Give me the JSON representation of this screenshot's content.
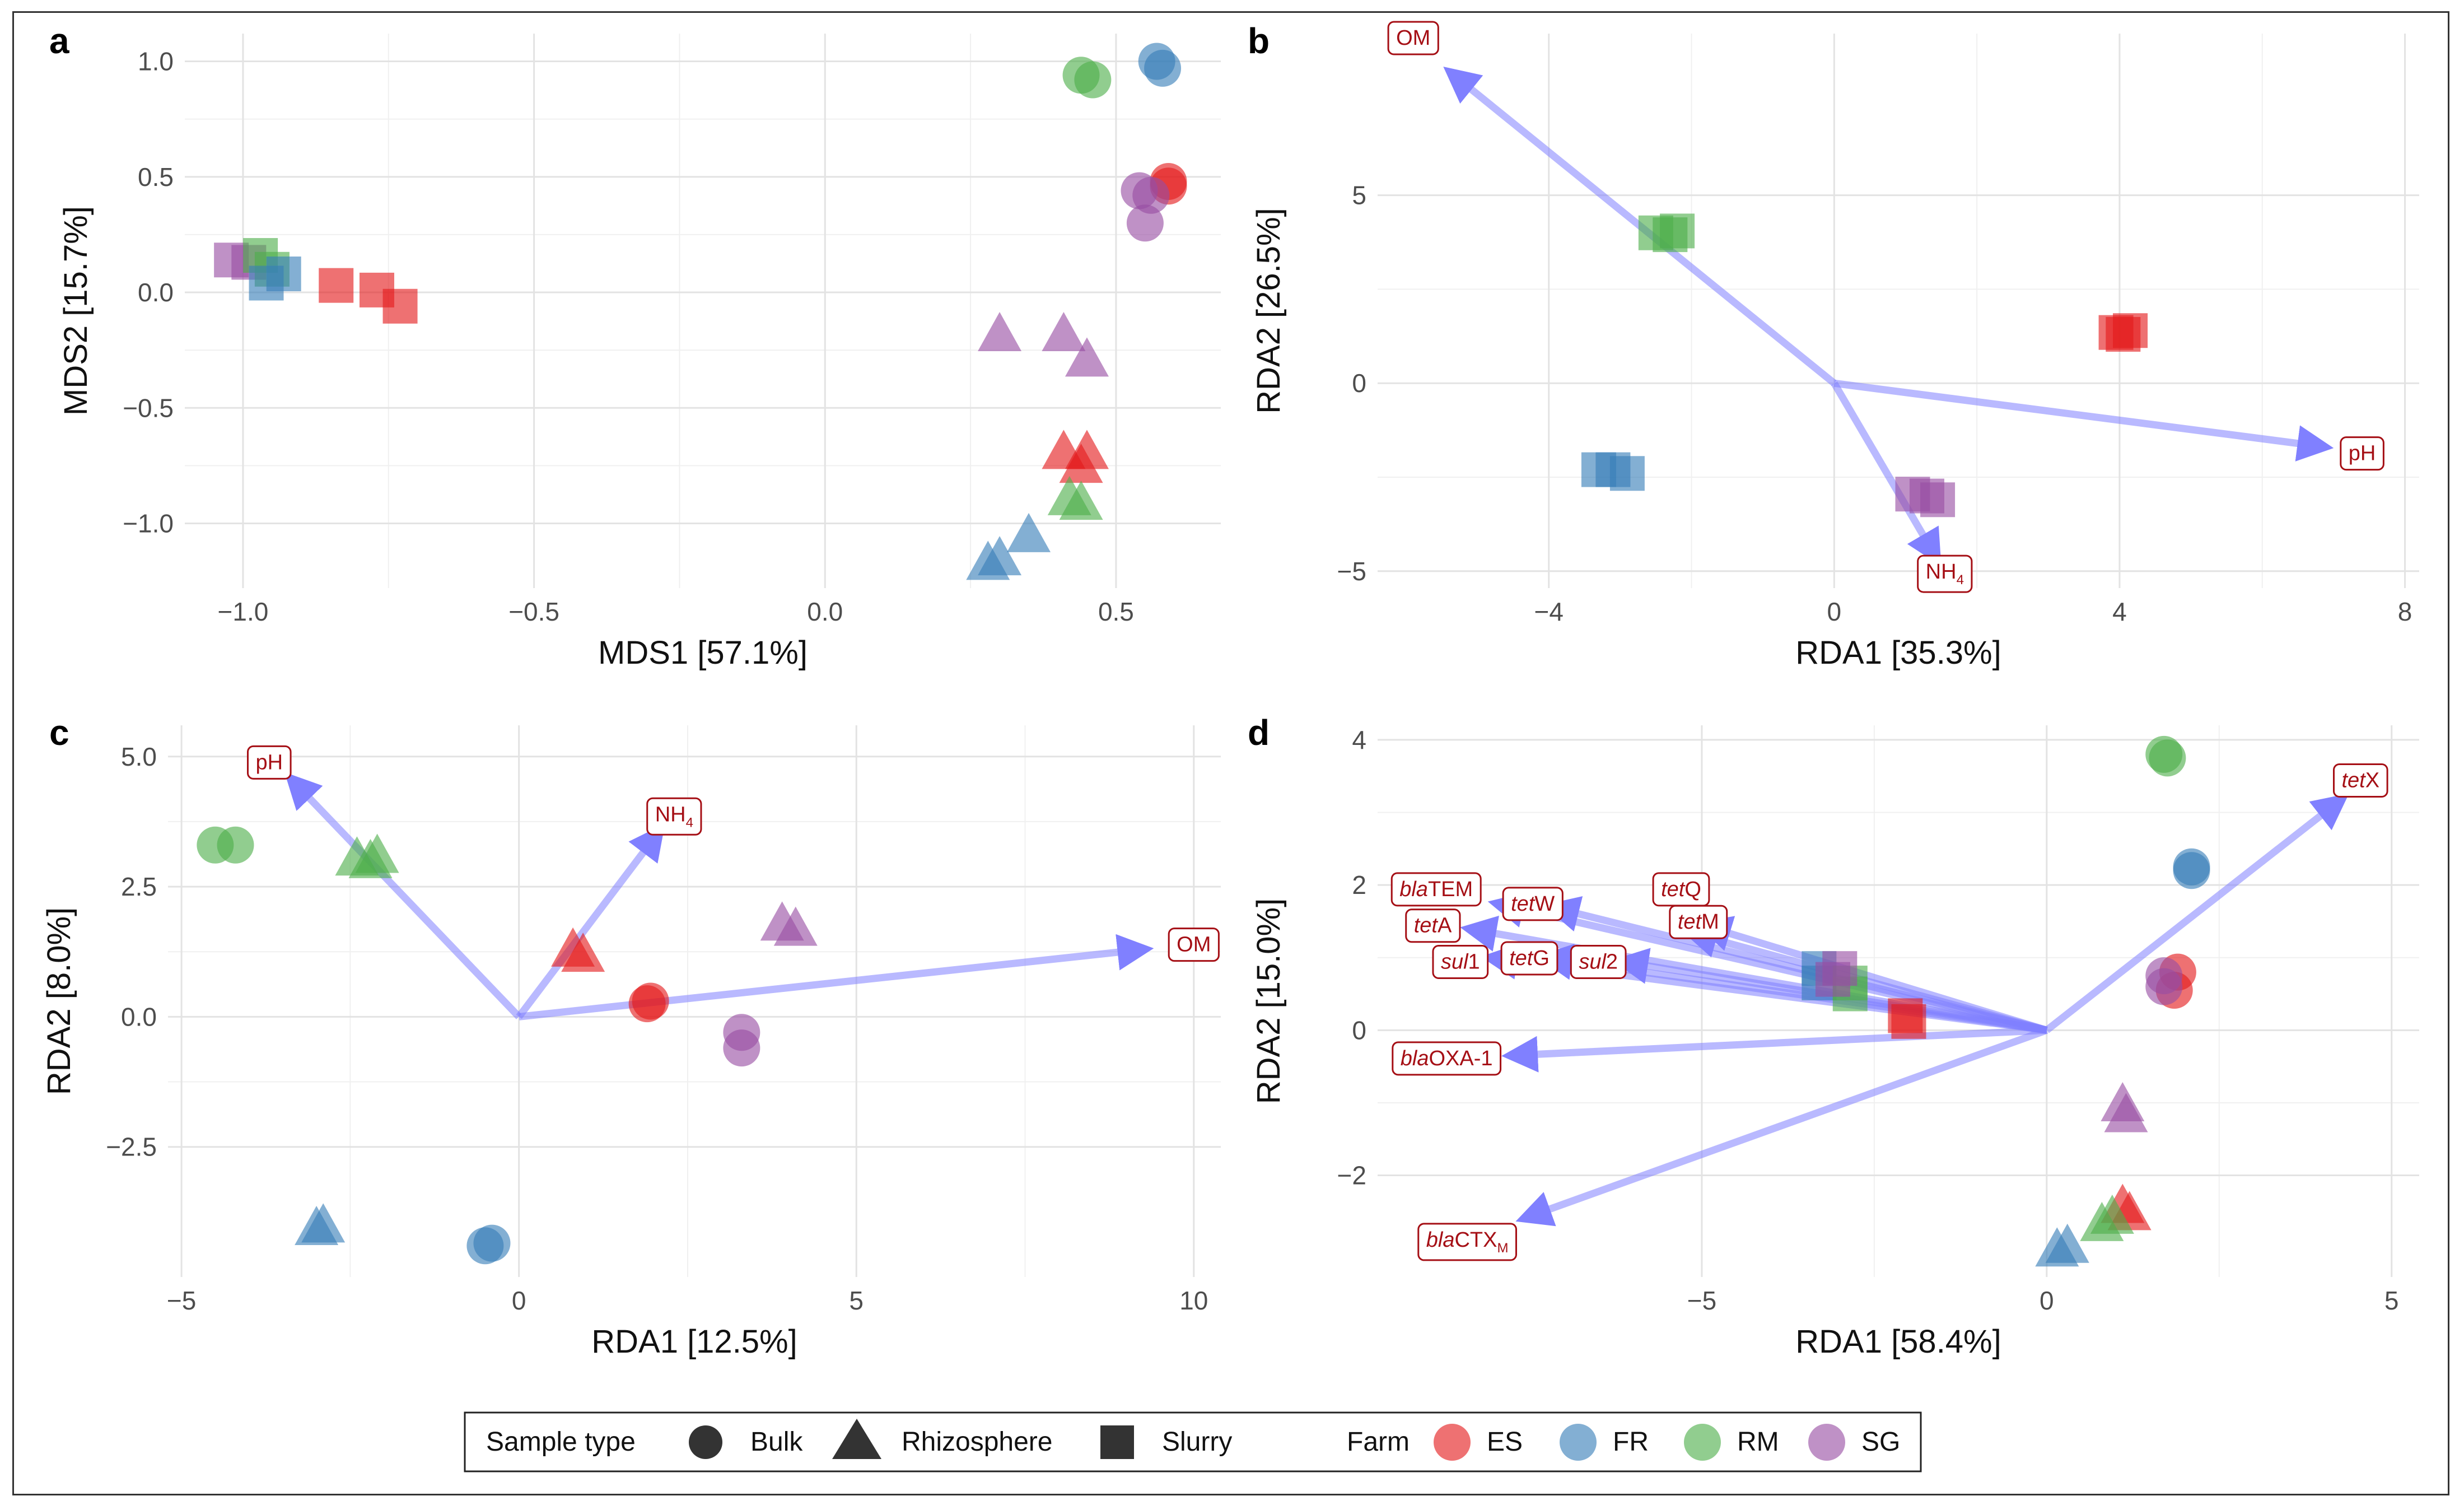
{
  "figure": {
    "panels": [
      "a",
      "b",
      "c",
      "d"
    ]
  },
  "legend": {
    "sample_type_title": "Sample type",
    "farm_title": "Farm",
    "sample_types": [
      {
        "label": "Bulk",
        "shape": "circle"
      },
      {
        "label": "Rhizosphere",
        "shape": "triangle"
      },
      {
        "label": "Slurry",
        "shape": "square"
      }
    ],
    "farms": [
      {
        "label": "ES",
        "color": "#e41a1c"
      },
      {
        "label": "FR",
        "color": "#377eb8"
      },
      {
        "label": "RM",
        "color": "#4daf4a"
      },
      {
        "label": "SG",
        "color": "#984ea3"
      }
    ]
  },
  "colors": {
    "ES": "#e41a1c",
    "FR": "#377eb8",
    "RM": "#4daf4a",
    "SG": "#984ea3",
    "arrow": "#8080ff",
    "label_border": "#a50f15",
    "label_text": "#a50f15"
  },
  "chart_data": [
    {
      "panel": "a",
      "type": "scatter",
      "xlabel": "MDS1 [57.1%]",
      "ylabel": "MDS2 [15.7%]",
      "xlim": [
        -1.1,
        0.68
      ],
      "ylim": [
        -1.28,
        1.12
      ],
      "xticks": [
        {
          "v": -1.0,
          "label": "−1.0"
        },
        {
          "v": -0.5,
          "label": "−0.5"
        },
        {
          "v": 0.0,
          "label": "0.0"
        },
        {
          "v": 0.5,
          "label": "0.5"
        }
      ],
      "yticks": [
        {
          "v": -1.0,
          "label": "−1.0"
        },
        {
          "v": -0.5,
          "label": "−0.5"
        },
        {
          "v": 0.0,
          "label": "0.0"
        },
        {
          "v": 0.5,
          "label": "0.5"
        },
        {
          "v": 1.0,
          "label": "1.0"
        }
      ],
      "points": [
        {
          "farm": "SG",
          "shape": "square",
          "x": -1.02,
          "y": 0.14
        },
        {
          "farm": "SG",
          "shape": "square",
          "x": -0.99,
          "y": 0.13
        },
        {
          "farm": "RM",
          "shape": "square",
          "x": -0.97,
          "y": 0.16
        },
        {
          "farm": "RM",
          "shape": "square",
          "x": -0.95,
          "y": 0.1
        },
        {
          "farm": "FR",
          "shape": "square",
          "x": -0.96,
          "y": 0.04
        },
        {
          "farm": "FR",
          "shape": "square",
          "x": -0.93,
          "y": 0.08
        },
        {
          "farm": "ES",
          "shape": "square",
          "x": -0.84,
          "y": 0.03
        },
        {
          "farm": "ES",
          "shape": "square",
          "x": -0.77,
          "y": 0.01
        },
        {
          "farm": "ES",
          "shape": "square",
          "x": -0.73,
          "y": -0.06
        },
        {
          "farm": "RM",
          "shape": "circle",
          "x": 0.44,
          "y": 0.94
        },
        {
          "farm": "RM",
          "shape": "circle",
          "x": 0.46,
          "y": 0.92
        },
        {
          "farm": "FR",
          "shape": "circle",
          "x": 0.57,
          "y": 1.0
        },
        {
          "farm": "FR",
          "shape": "circle",
          "x": 0.58,
          "y": 0.97
        },
        {
          "farm": "ES",
          "shape": "circle",
          "x": 0.59,
          "y": 0.48
        },
        {
          "farm": "ES",
          "shape": "circle",
          "x": 0.59,
          "y": 0.46
        },
        {
          "farm": "SG",
          "shape": "circle",
          "x": 0.54,
          "y": 0.44
        },
        {
          "farm": "SG",
          "shape": "circle",
          "x": 0.56,
          "y": 0.42
        },
        {
          "farm": "SG",
          "shape": "circle",
          "x": 0.55,
          "y": 0.3
        },
        {
          "farm": "SG",
          "shape": "triangle",
          "x": 0.3,
          "y": -0.19
        },
        {
          "farm": "SG",
          "shape": "triangle",
          "x": 0.41,
          "y": -0.19
        },
        {
          "farm": "SG",
          "shape": "triangle",
          "x": 0.45,
          "y": -0.3
        },
        {
          "farm": "ES",
          "shape": "triangle",
          "x": 0.41,
          "y": -0.7
        },
        {
          "farm": "ES",
          "shape": "triangle",
          "x": 0.45,
          "y": -0.7
        },
        {
          "farm": "ES",
          "shape": "triangle",
          "x": 0.44,
          "y": -0.76
        },
        {
          "farm": "RM",
          "shape": "triangle",
          "x": 0.42,
          "y": -0.9
        },
        {
          "farm": "RM",
          "shape": "triangle",
          "x": 0.44,
          "y": -0.92
        },
        {
          "farm": "FR",
          "shape": "triangle",
          "x": 0.35,
          "y": -1.06
        },
        {
          "farm": "FR",
          "shape": "triangle",
          "x": 0.28,
          "y": -1.18
        },
        {
          "farm": "FR",
          "shape": "triangle",
          "x": 0.3,
          "y": -1.16
        }
      ],
      "arrows": []
    },
    {
      "panel": "b",
      "type": "scatter",
      "xlabel": "RDA1 [35.3%]",
      "ylabel": "RDA2 [26.5%]",
      "xlim": [
        -6.4,
        8.2
      ],
      "ylim": [
        -5.45,
        9.3
      ],
      "xticks": [
        {
          "v": -4,
          "label": "−4"
        },
        {
          "v": 0,
          "label": "0"
        },
        {
          "v": 4,
          "label": "4"
        },
        {
          "v": 8,
          "label": "8"
        }
      ],
      "yticks": [
        {
          "v": -5,
          "label": "−5"
        },
        {
          "v": 0,
          "label": "0"
        },
        {
          "v": 5,
          "label": "5"
        }
      ],
      "points": [
        {
          "farm": "RM",
          "shape": "square",
          "x": -2.5,
          "y": 4.0
        },
        {
          "farm": "RM",
          "shape": "square",
          "x": -2.2,
          "y": 4.05
        },
        {
          "farm": "RM",
          "shape": "square",
          "x": -2.3,
          "y": 3.95
        },
        {
          "farm": "ES",
          "shape": "square",
          "x": 3.95,
          "y": 1.35
        },
        {
          "farm": "ES",
          "shape": "square",
          "x": 4.15,
          "y": 1.4
        },
        {
          "farm": "ES",
          "shape": "square",
          "x": 4.05,
          "y": 1.3
        },
        {
          "farm": "FR",
          "shape": "square",
          "x": -3.3,
          "y": -2.3
        },
        {
          "farm": "FR",
          "shape": "square",
          "x": -3.1,
          "y": -2.3
        },
        {
          "farm": "FR",
          "shape": "square",
          "x": -2.9,
          "y": -2.4
        },
        {
          "farm": "SG",
          "shape": "square",
          "x": 1.1,
          "y": -2.95
        },
        {
          "farm": "SG",
          "shape": "square",
          "x": 1.45,
          "y": -3.1
        },
        {
          "farm": "SG",
          "shape": "square",
          "x": 1.3,
          "y": -3.0
        }
      ],
      "arrows": [
        {
          "label": "OM",
          "sub": "",
          "italic": "",
          "x": -5.4,
          "y": 8.3,
          "lx": -5.9,
          "ly": 9.2
        },
        {
          "label": "pH",
          "sub": "",
          "italic": "",
          "x": 6.9,
          "y": -1.7,
          "lx": 7.4,
          "ly": -1.85
        },
        {
          "label": "NH",
          "sub": "4",
          "italic": "",
          "x": 1.45,
          "y": -4.7,
          "lx": 1.55,
          "ly": -5.0
        }
      ]
    },
    {
      "panel": "c",
      "type": "scatter",
      "xlabel": "RDA1 [12.5%]",
      "ylabel": "RDA2 [8.0%]",
      "xlim": [
        -5.2,
        10.4
      ],
      "ylim": [
        -5.0,
        5.6
      ],
      "xticks": [
        {
          "v": -5,
          "label": "−5"
        },
        {
          "v": 0,
          "label": "0"
        },
        {
          "v": 5,
          "label": "5"
        },
        {
          "v": 10,
          "label": "10"
        }
      ],
      "yticks": [
        {
          "v": -2.5,
          "label": "−2.5"
        },
        {
          "v": 0.0,
          "label": "0.0"
        },
        {
          "v": 2.5,
          "label": "2.5"
        },
        {
          "v": 5.0,
          "label": "5.0"
        }
      ],
      "points": [
        {
          "farm": "RM",
          "shape": "circle",
          "x": -4.5,
          "y": 3.3
        },
        {
          "farm": "RM",
          "shape": "circle",
          "x": -4.2,
          "y": 3.3
        },
        {
          "farm": "RM",
          "shape": "triangle",
          "x": -2.4,
          "y": 3.0
        },
        {
          "farm": "RM",
          "shape": "triangle",
          "x": -2.1,
          "y": 3.05
        },
        {
          "farm": "RM",
          "shape": "triangle",
          "x": -2.2,
          "y": 2.95
        },
        {
          "farm": "ES",
          "shape": "triangle",
          "x": 0.8,
          "y": 1.25
        },
        {
          "farm": "ES",
          "shape": "triangle",
          "x": 0.95,
          "y": 1.15
        },
        {
          "farm": "ES",
          "shape": "circle",
          "x": 1.9,
          "y": 0.25
        },
        {
          "farm": "ES",
          "shape": "circle",
          "x": 1.95,
          "y": 0.3
        },
        {
          "farm": "SG",
          "shape": "triangle",
          "x": 3.9,
          "y": 1.75
        },
        {
          "farm": "SG",
          "shape": "triangle",
          "x": 4.1,
          "y": 1.65
        },
        {
          "farm": "SG",
          "shape": "circle",
          "x": 3.3,
          "y": -0.3
        },
        {
          "farm": "SG",
          "shape": "circle",
          "x": 3.3,
          "y": -0.6
        },
        {
          "farm": "FR",
          "shape": "triangle",
          "x": -3.0,
          "y": -4.1
        },
        {
          "farm": "FR",
          "shape": "triangle",
          "x": -2.9,
          "y": -4.05
        },
        {
          "farm": "FR",
          "shape": "circle",
          "x": -0.5,
          "y": -4.4
        },
        {
          "farm": "FR",
          "shape": "circle",
          "x": -0.4,
          "y": -4.35
        }
      ],
      "arrows": [
        {
          "label": "pH",
          "sub": "",
          "italic": "",
          "x": -3.4,
          "y": 4.6,
          "lx": -3.7,
          "ly": 4.9
        },
        {
          "label": "NH",
          "sub": "4",
          "italic": "",
          "x": 2.1,
          "y": 3.6,
          "lx": 2.3,
          "ly": 3.9
        },
        {
          "label": "OM",
          "sub": "",
          "italic": "",
          "x": 9.3,
          "y": 1.3,
          "lx": 10.0,
          "ly": 1.4
        }
      ]
    },
    {
      "panel": "d",
      "type": "scatter",
      "xlabel": "RDA1 [58.4%]",
      "ylabel": "RDA2 [15.0%]",
      "xlim": [
        -9.7,
        5.4
      ],
      "ylim": [
        -3.4,
        4.2
      ],
      "xticks": [
        {
          "v": -5,
          "label": "−5"
        },
        {
          "v": 0,
          "label": "0"
        },
        {
          "v": 5,
          "label": "5"
        }
      ],
      "yticks": [
        {
          "v": -2,
          "label": "−2"
        },
        {
          "v": 0,
          "label": "0"
        },
        {
          "v": 2,
          "label": "2"
        },
        {
          "v": 4,
          "label": "4"
        }
      ],
      "points": [
        {
          "farm": "RM",
          "shape": "circle",
          "x": 1.7,
          "y": 3.8
        },
        {
          "farm": "RM",
          "shape": "circle",
          "x": 1.75,
          "y": 3.75
        },
        {
          "farm": "FR",
          "shape": "circle",
          "x": 2.1,
          "y": 2.25
        },
        {
          "farm": "FR",
          "shape": "circle",
          "x": 2.1,
          "y": 2.2
        },
        {
          "farm": "ES",
          "shape": "circle",
          "x": 1.9,
          "y": 0.8
        },
        {
          "farm": "ES",
          "shape": "circle",
          "x": 1.85,
          "y": 0.55
        },
        {
          "farm": "SG",
          "shape": "circle",
          "x": 1.7,
          "y": 0.75
        },
        {
          "farm": "SG",
          "shape": "circle",
          "x": 1.7,
          "y": 0.6
        },
        {
          "farm": "FR",
          "shape": "square",
          "x": -3.3,
          "y": 0.85
        },
        {
          "farm": "FR",
          "shape": "square",
          "x": -3.3,
          "y": 0.65
        },
        {
          "farm": "RM",
          "shape": "square",
          "x": -2.85,
          "y": 0.65
        },
        {
          "farm": "RM",
          "shape": "square",
          "x": -2.85,
          "y": 0.5
        },
        {
          "farm": "SG",
          "shape": "square",
          "x": -3.0,
          "y": 0.85
        },
        {
          "farm": "SG",
          "shape": "square",
          "x": -3.1,
          "y": 0.7
        },
        {
          "farm": "ES",
          "shape": "square",
          "x": -2.05,
          "y": 0.2
        },
        {
          "farm": "ES",
          "shape": "square",
          "x": -2.0,
          "y": 0.12
        },
        {
          "farm": "SG",
          "shape": "triangle",
          "x": 1.1,
          "y": -1.05
        },
        {
          "farm": "SG",
          "shape": "triangle",
          "x": 1.15,
          "y": -1.2
        },
        {
          "farm": "ES",
          "shape": "triangle",
          "x": 1.1,
          "y": -2.45
        },
        {
          "farm": "ES",
          "shape": "triangle",
          "x": 1.2,
          "y": -2.55
        },
        {
          "farm": "RM",
          "shape": "triangle",
          "x": 0.8,
          "y": -2.7
        },
        {
          "farm": "RM",
          "shape": "triangle",
          "x": 0.95,
          "y": -2.6
        },
        {
          "farm": "FR",
          "shape": "triangle",
          "x": 0.15,
          "y": -3.05
        },
        {
          "farm": "FR",
          "shape": "triangle",
          "x": 0.3,
          "y": -3.0
        }
      ],
      "arrows": [
        {
          "label": "X",
          "sub": "",
          "italic": "tet",
          "x": 4.3,
          "y": 3.2,
          "lx": 4.55,
          "ly": 3.45
        },
        {
          "label": "TEM",
          "sub": "",
          "italic": "bla",
          "x": -8.0,
          "y": 1.75,
          "lx": -8.85,
          "ly": 1.95
        },
        {
          "label": "W",
          "sub": "",
          "italic": "tet",
          "x": -7.2,
          "y": 1.7,
          "lx": -7.45,
          "ly": 1.75
        },
        {
          "label": "Q",
          "sub": "",
          "italic": "tet",
          "x": -5.0,
          "y": 1.45,
          "lx": -5.3,
          "ly": 1.95
        },
        {
          "label": "M",
          "sub": "",
          "italic": "tet",
          "x": -5.2,
          "y": 1.35,
          "lx": -5.05,
          "ly": 1.5
        },
        {
          "label": "A",
          "sub": "",
          "italic": "tet",
          "x": -8.4,
          "y": 1.4,
          "lx": -8.9,
          "ly": 1.45
        },
        {
          "label": "1",
          "sub": "",
          "italic": "sul",
          "x": -8.1,
          "y": 1.0,
          "lx": -8.5,
          "ly": 0.95
        },
        {
          "label": "G",
          "sub": "",
          "italic": "tet",
          "x": -7.3,
          "y": 1.0,
          "lx": -7.5,
          "ly": 1.0
        },
        {
          "label": "2",
          "sub": "",
          "italic": "sul",
          "x": -6.2,
          "y": 0.95,
          "lx": -6.5,
          "ly": 0.95
        },
        {
          "label": "OXA-1",
          "sub": "",
          "italic": "bla",
          "x": -7.8,
          "y": -0.35,
          "lx": -8.7,
          "ly": -0.38
        },
        {
          "label": "CTX",
          "sub": "M",
          "italic": "bla",
          "x": -7.6,
          "y": -2.6,
          "lx": -8.4,
          "ly": -2.88
        }
      ]
    }
  ]
}
